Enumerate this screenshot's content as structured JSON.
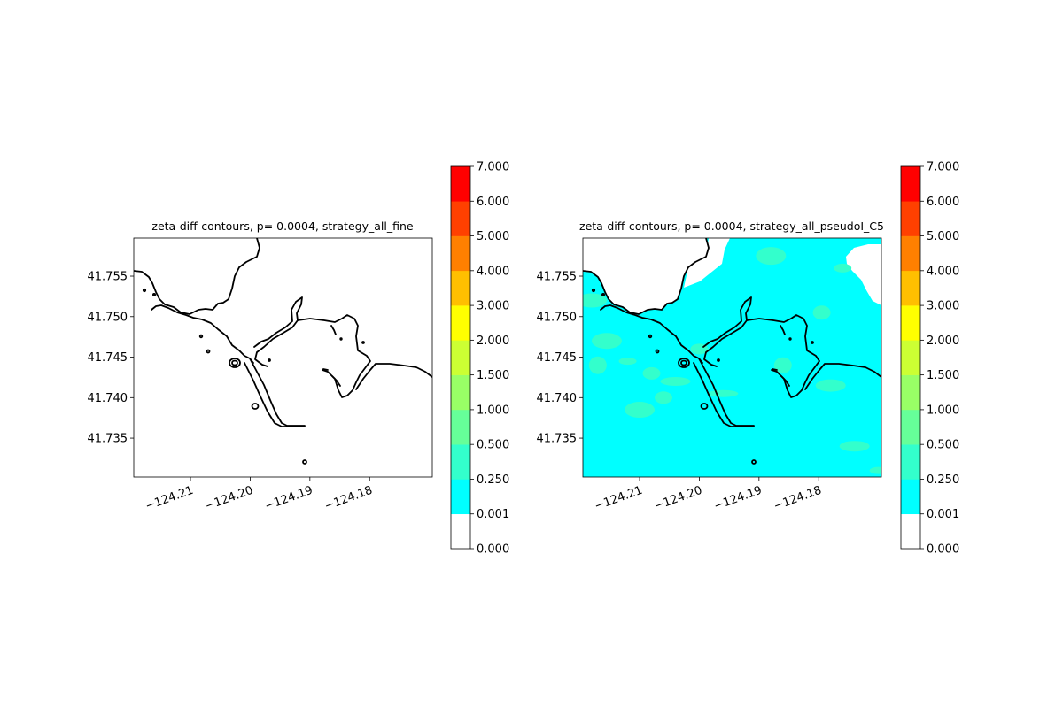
{
  "chart_data": [
    {
      "type": "contour",
      "title": "zeta-diff-contours, p= 0.0004, strategy_all_fine",
      "xlabel": "",
      "ylabel": "",
      "xlim": [
        -124.2195,
        -124.1695
      ],
      "ylim": [
        41.7302,
        41.7597
      ],
      "x_ticks": [
        {
          "value": -124.21,
          "label": "−124.21"
        },
        {
          "value": -124.2,
          "label": "−124.20"
        },
        {
          "value": -124.19,
          "label": "−124.19"
        },
        {
          "value": -124.18,
          "label": "−124.18"
        }
      ],
      "y_ticks": [
        {
          "value": 41.755,
          "label": "41.755"
        },
        {
          "value": 41.75,
          "label": "41.750"
        },
        {
          "value": 41.745,
          "label": "41.745"
        },
        {
          "value": 41.74,
          "label": "41.740"
        },
        {
          "value": 41.735,
          "label": "41.735"
        }
      ],
      "fill": "none",
      "patches": []
    },
    {
      "type": "contour",
      "title": "zeta-diff-contours, p= 0.0004, strategy_all_pseudoI_C5",
      "xlabel": "",
      "ylabel": "",
      "xlim": [
        -124.2195,
        -124.1695
      ],
      "ylim": [
        41.7302,
        41.7597
      ],
      "x_ticks": [
        {
          "value": -124.21,
          "label": "−124.21"
        },
        {
          "value": -124.2,
          "label": "−124.20"
        },
        {
          "value": -124.19,
          "label": "−124.19"
        },
        {
          "value": -124.18,
          "label": "−124.18"
        }
      ],
      "y_ticks": [
        {
          "value": 41.755,
          "label": "41.755"
        },
        {
          "value": 41.75,
          "label": "41.750"
        },
        {
          "value": 41.745,
          "label": "41.745"
        },
        {
          "value": 41.74,
          "label": "41.740"
        },
        {
          "value": 41.735,
          "label": "41.735"
        }
      ],
      "fill": "0.001-0.250",
      "patches": [
        {
          "level": "0.250-0.500",
          "x": -124.212,
          "y": 41.7445
        },
        {
          "level": "0.250-0.500",
          "x": -124.2155,
          "y": 41.747
        },
        {
          "level": "0.250-0.500",
          "x": -124.208,
          "y": 41.743
        },
        {
          "level": "0.250-0.500",
          "x": -124.204,
          "y": 41.742
        },
        {
          "level": "0.250-0.500",
          "x": -124.217,
          "y": 41.744
        },
        {
          "level": "0.250-0.500",
          "x": -124.218,
          "y": 41.752
        },
        {
          "level": "0.250-0.500",
          "x": -124.2,
          "y": 41.746
        },
        {
          "level": "0.250-0.500",
          "x": -124.196,
          "y": 41.7405
        },
        {
          "level": "0.250-0.500",
          "x": -124.186,
          "y": 41.744
        },
        {
          "level": "0.250-0.500",
          "x": -124.178,
          "y": 41.7415
        },
        {
          "level": "0.250-0.500",
          "x": -124.176,
          "y": 41.756
        },
        {
          "level": "0.250-0.500",
          "x": -124.188,
          "y": 41.7575
        },
        {
          "level": "0.250-0.500",
          "x": -124.1795,
          "y": 41.7505
        },
        {
          "level": "0.250-0.500",
          "x": -124.174,
          "y": 41.734
        },
        {
          "level": "0.250-0.500",
          "x": -124.17,
          "y": 41.731
        },
        {
          "level": "0.250-0.500",
          "x": -124.21,
          "y": 41.7385
        },
        {
          "level": "0.250-0.500",
          "x": -124.206,
          "y": 41.74
        }
      ]
    }
  ],
  "colorbar": {
    "boundaries": [
      "0.000",
      "0.001",
      "0.250",
      "0.500",
      "1.000",
      "1.500",
      "2.000",
      "3.000",
      "4.000",
      "5.000",
      "6.000",
      "7.000"
    ],
    "colors": [
      "#ffffff",
      "#00ffff",
      "#33ffcc",
      "#66ff99",
      "#99ff66",
      "#ccff33",
      "#ffff00",
      "#ffbf00",
      "#ff8000",
      "#ff4000",
      "#ff0000"
    ]
  },
  "coastline_color": "#000000"
}
